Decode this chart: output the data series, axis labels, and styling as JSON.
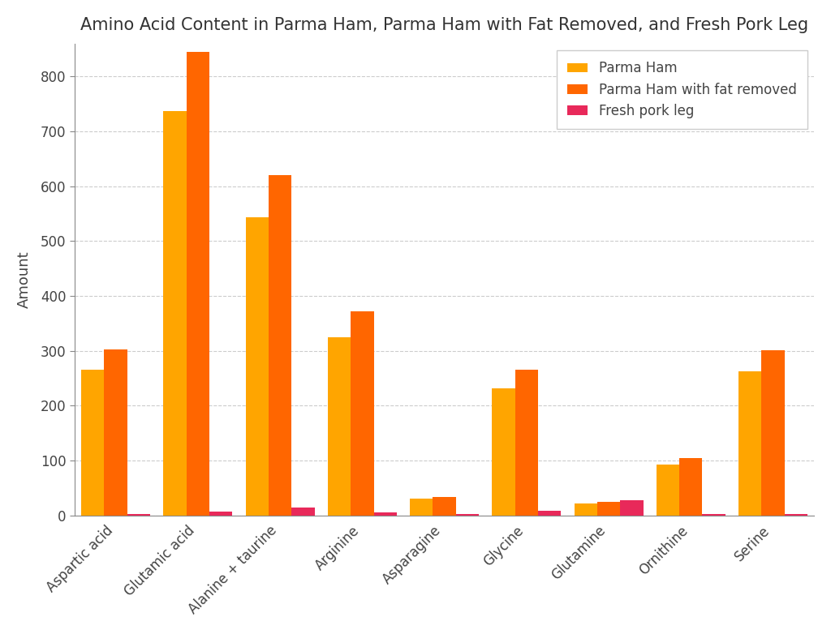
{
  "title": "Amino Acid Content in Parma Ham, Parma Ham with Fat Removed, and Fresh Pork Leg",
  "ylabel": "Amount",
  "categories": [
    "Aspartic acid",
    "Glutamic acid",
    "Alanine + taurine",
    "Arginine",
    "Asparagine",
    "Glycine",
    "Glutamine",
    "Ornithine",
    "Serine"
  ],
  "series": [
    {
      "name": "Parma Ham",
      "color": "#FFA500",
      "values": [
        265,
        737,
        543,
        325,
        30,
        232,
        22,
        93,
        262
      ]
    },
    {
      "name": "Parma Ham with fat removed",
      "color": "#FF6600",
      "values": [
        303,
        845,
        620,
        372,
        34,
        265,
        25,
        105,
        301
      ]
    },
    {
      "name": "Fresh pork leg",
      "color": "#E8295A",
      "values": [
        2,
        7,
        15,
        5,
        2,
        8,
        27,
        2,
        3
      ]
    }
  ],
  "ylim": [
    0,
    860
  ],
  "yticks": [
    0,
    100,
    200,
    300,
    400,
    500,
    600,
    700,
    800
  ],
  "background_color": "#FFFFFF",
  "grid_color": "#CCCCCC",
  "title_fontsize": 15,
  "axis_label_fontsize": 13,
  "tick_fontsize": 12,
  "legend_fontsize": 12,
  "bar_width": 0.28
}
